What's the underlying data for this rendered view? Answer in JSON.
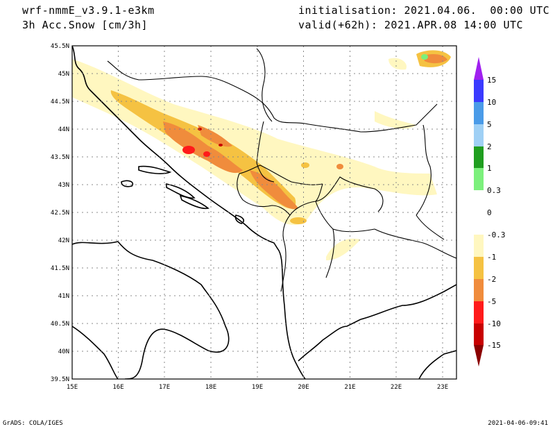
{
  "header": {
    "model": "wrf-nmmE_v3.9.1-e3km",
    "field": "3h Acc.Snow [cm/3h]",
    "init": "initialisation: 2021.04.06.  00:00 UTC",
    "valid": "valid(+62h): 2021.APR.08 14:00 UTC"
  },
  "footer": {
    "credit": "GrADS: COLA/IGES",
    "timestamp": "2021-04-06-09:41"
  },
  "map": {
    "lon_labels": [
      "15E",
      "16E",
      "17E",
      "18E",
      "19E",
      "20E",
      "21E",
      "22E",
      "23E"
    ],
    "lat_labels": [
      "45.5N",
      "45N",
      "44.5N",
      "44N",
      "43.5N",
      "43N",
      "42.5N",
      "42N",
      "41.5N",
      "41N",
      "40.5N",
      "40N",
      "39.5N"
    ],
    "lon_range": [
      15,
      23.3
    ],
    "lat_range": [
      39.5,
      45.5
    ]
  },
  "legend": {
    "labels": [
      "15",
      "10",
      "5",
      "2",
      "1",
      "0.3",
      "0",
      "-0.3",
      "-1",
      "-2",
      "-5",
      "-10",
      "-15"
    ],
    "colors": [
      "#a020f0",
      "#3a3aff",
      "#4a9be8",
      "#9fd0f5",
      "#1f9e1f",
      "#7cf07c",
      "#ffffff",
      "#fff7c0",
      "#f5c242",
      "#f08c3c",
      "#ff1a1a",
      "#c80000",
      "#8b0000"
    ]
  }
}
